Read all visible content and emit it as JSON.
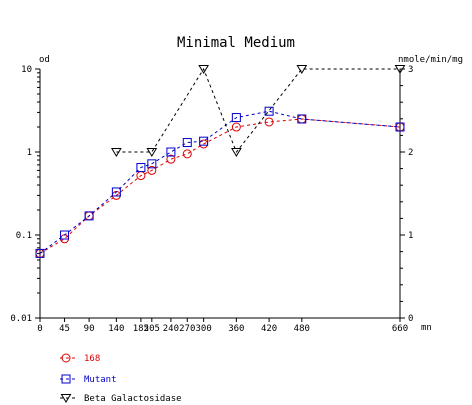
{
  "chart_data": {
    "type": "line",
    "title": "Minimal Medium",
    "y_left_label": "od",
    "y_right_label": "nmole/min/mg",
    "x_unit": "mn",
    "x_ticks": [
      0,
      45,
      90,
      140,
      185,
      205,
      240,
      270,
      300,
      360,
      420,
      480,
      660
    ],
    "x_tick_labels": [
      "0",
      "45",
      "90",
      "140",
      "185",
      "205",
      "240",
      "270",
      "300",
      "360",
      "420",
      "480",
      "660"
    ],
    "y_left_scale": "log",
    "y_left_ticks": [
      0.01,
      0.1,
      1,
      10
    ],
    "y_left_tick_labels": [
      "0.01",
      "0.1",
      "1",
      "10"
    ],
    "y_right_ticks": [
      0,
      1,
      2,
      3
    ],
    "y_right_tick_labels": [
      "0",
      "1",
      "2",
      "3"
    ],
    "grid": false,
    "legend_position": "bottom-left",
    "series": [
      {
        "name": "168",
        "color": "#dd0000",
        "marker": "circle",
        "axis": "left",
        "x": [
          0,
          45,
          90,
          140,
          185,
          205,
          240,
          270,
          300,
          360,
          420,
          480,
          660
        ],
        "y": [
          0.06,
          0.09,
          0.17,
          0.3,
          0.52,
          0.6,
          0.82,
          0.95,
          1.25,
          2.0,
          2.3,
          2.5,
          2.0
        ]
      },
      {
        "name": "Mutant",
        "color": "#0000cc",
        "marker": "square",
        "axis": "left",
        "x": [
          0,
          45,
          90,
          140,
          185,
          205,
          240,
          270,
          300,
          360,
          420,
          480,
          660
        ],
        "y": [
          0.06,
          0.1,
          0.17,
          0.33,
          0.65,
          0.72,
          1.0,
          1.3,
          1.35,
          2.6,
          3.1,
          2.5,
          2.0
        ]
      },
      {
        "name": "Beta Galactosidase",
        "color": "#000000",
        "marker": "triangle-down",
        "axis": "right",
        "x": [
          140,
          205,
          300,
          360,
          480,
          660
        ],
        "y": [
          2,
          2,
          3,
          2,
          3,
          3
        ]
      }
    ]
  }
}
